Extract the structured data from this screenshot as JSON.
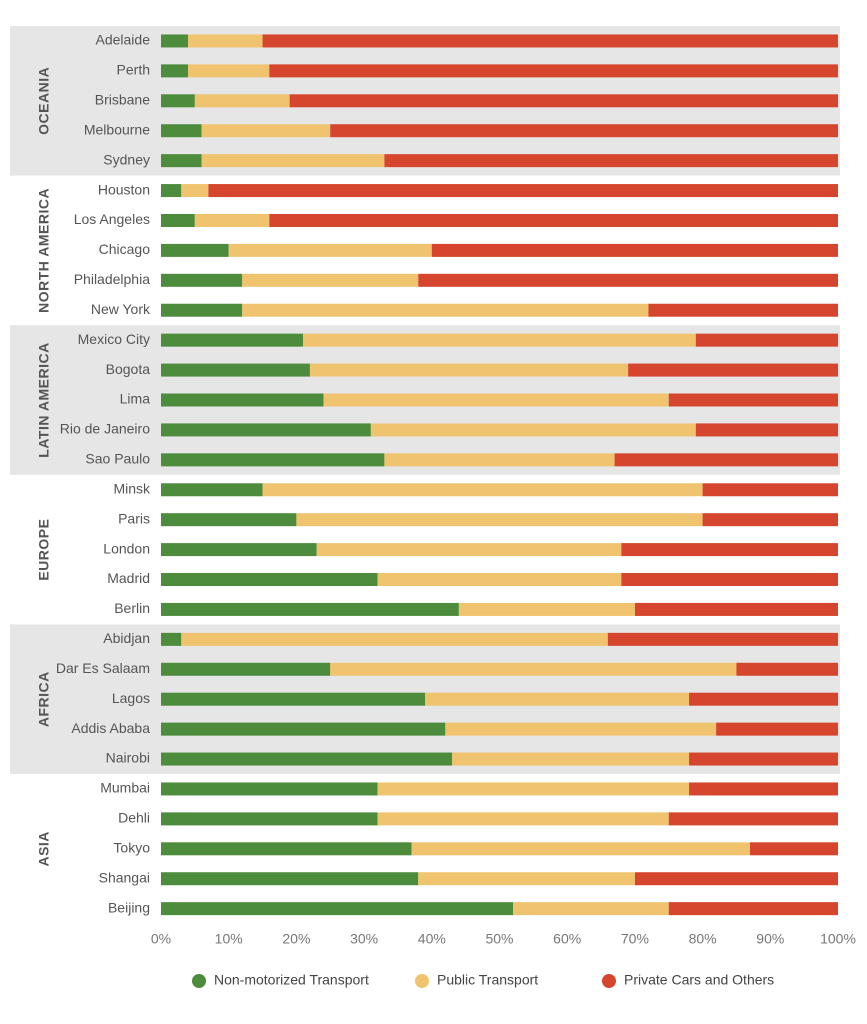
{
  "chart_data": {
    "type": "bar",
    "orientation": "horizontal",
    "stacked": true,
    "percent_stacked": true,
    "grid": false,
    "legend_position": "bottom",
    "xlim": [
      0,
      100
    ],
    "x_ticks": [
      "0%",
      "10%",
      "20%",
      "30%",
      "40%",
      "50%",
      "60%",
      "70%",
      "80%",
      "90%",
      "100%"
    ],
    "series": [
      {
        "name": "Non-motorized Transport",
        "color": "#4c8c3c"
      },
      {
        "name": "Public Transport",
        "color": "#f0c46e"
      },
      {
        "name": "Private Cars and Others",
        "color": "#d6452d"
      }
    ],
    "groups": [
      {
        "region": "OCEANIA",
        "shaded": true,
        "cities": [
          {
            "name": "Adelaide",
            "values": [
              4,
              11,
              85
            ]
          },
          {
            "name": "Perth",
            "values": [
              4,
              12,
              84
            ]
          },
          {
            "name": "Brisbane",
            "values": [
              5,
              14,
              81
            ]
          },
          {
            "name": "Melbourne",
            "values": [
              6,
              19,
              75
            ]
          },
          {
            "name": "Sydney",
            "values": [
              6,
              27,
              67
            ]
          }
        ]
      },
      {
        "region": "NORTH AMERICA",
        "shaded": false,
        "cities": [
          {
            "name": "Houston",
            "values": [
              3,
              4,
              93
            ]
          },
          {
            "name": "Los Angeles",
            "values": [
              5,
              11,
              84
            ]
          },
          {
            "name": "Chicago",
            "values": [
              10,
              30,
              60
            ]
          },
          {
            "name": "Philadelphia",
            "values": [
              12,
              26,
              62
            ]
          },
          {
            "name": "New York",
            "values": [
              12,
              60,
              28
            ]
          }
        ]
      },
      {
        "region": "LATIN AMERICA",
        "shaded": true,
        "cities": [
          {
            "name": "Mexico  City",
            "values": [
              21,
              58,
              21
            ]
          },
          {
            "name": "Bogota",
            "values": [
              22,
              47,
              31
            ]
          },
          {
            "name": "Lima",
            "values": [
              24,
              51,
              25
            ]
          },
          {
            "name": "Rio de Janeiro",
            "values": [
              31,
              48,
              21
            ]
          },
          {
            "name": "Sao Paulo",
            "values": [
              33,
              34,
              33
            ]
          }
        ]
      },
      {
        "region": "EUROPE",
        "shaded": false,
        "cities": [
          {
            "name": "Minsk",
            "values": [
              15,
              65,
              20
            ]
          },
          {
            "name": "Paris",
            "values": [
              20,
              60,
              20
            ]
          },
          {
            "name": "London",
            "values": [
              23,
              45,
              32
            ]
          },
          {
            "name": "Madrid",
            "values": [
              32,
              36,
              32
            ]
          },
          {
            "name": "Berlin",
            "values": [
              44,
              26,
              30
            ]
          }
        ]
      },
      {
        "region": "AFRICA",
        "shaded": true,
        "cities": [
          {
            "name": "Abidjan",
            "values": [
              3,
              63,
              34
            ]
          },
          {
            "name": "Dar Es Salaam",
            "values": [
              25,
              60,
              15
            ]
          },
          {
            "name": "Lagos",
            "values": [
              39,
              39,
              22
            ]
          },
          {
            "name": "Addis Ababa",
            "values": [
              42,
              40,
              18
            ]
          },
          {
            "name": "Nairobi",
            "values": [
              43,
              35,
              22
            ]
          }
        ]
      },
      {
        "region": "ASIA",
        "shaded": false,
        "cities": [
          {
            "name": "Mumbai",
            "values": [
              32,
              46,
              22
            ]
          },
          {
            "name": "Dehli",
            "values": [
              32,
              43,
              25
            ]
          },
          {
            "name": "Tokyo",
            "values": [
              37,
              50,
              13
            ]
          },
          {
            "name": "Shangai",
            "values": [
              38,
              32,
              30
            ]
          },
          {
            "name": "Beijing",
            "values": [
              52,
              23,
              25
            ]
          }
        ]
      }
    ],
    "group_shading_color": "#e6e6e6"
  }
}
